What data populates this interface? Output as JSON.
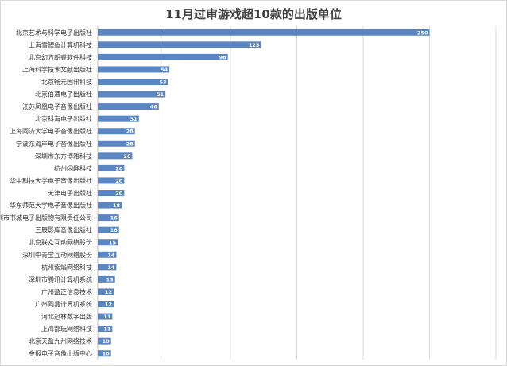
{
  "chart_data": {
    "type": "bar",
    "orientation": "horizontal",
    "title": "11月过审游戏超10款的出版单位",
    "xlabel": "",
    "ylabel": "",
    "xlim": [
      0,
      300
    ],
    "grid": true,
    "legend": "none",
    "bar_color": "#5b86c4",
    "label_color": "#ffffff",
    "categories": [
      "北京艺术与科学电子出版社",
      "上海雪鲤鱼计算机科技",
      "北京幻方朗睿软件科技",
      "上海科学技术文献出版社",
      "北京畅元国讯科技",
      "北京伯通电子出版社",
      "江苏凤凰电子音像出版社",
      "北京科海电子出版社",
      "上海同济大学电子音像出版社",
      "宁波东海岸电子音像出版社",
      "深圳市东方博雅科技",
      "杭州闲趣科技",
      "华中科技大学电子音像出版社",
      "天津电子出版社",
      "华东师范大学电子音像出版社",
      "深圳市书城电子出版物有限责任公司",
      "三辰影库音像出版社",
      "北京联众互动网络股份",
      "深圳中青宝互动网络股份",
      "杭州紫焰网络科技",
      "深圳市腾讯计算机系统",
      "广州盈正信息技术",
      "广州网易计算机系统",
      "河北冠林数字出版",
      "上海都玩网络科技",
      "北京天盈九州网络技术",
      "金报电子音像出版中心"
    ],
    "values": [
      250,
      123,
      98,
      54,
      53,
      51,
      46,
      31,
      28,
      28,
      26,
      20,
      20,
      20,
      18,
      16,
      16,
      15,
      14,
      14,
      13,
      12,
      12,
      11,
      11,
      10,
      10
    ]
  }
}
